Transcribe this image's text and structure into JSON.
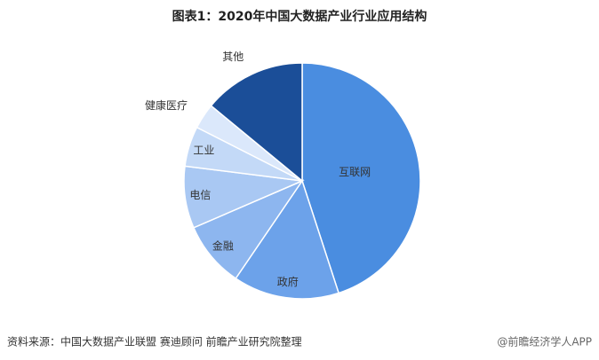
{
  "chart_data": {
    "type": "pie",
    "title": "图表1：2020年中国大数据产业行业应用结构",
    "categories": [
      "互联网",
      "政府",
      "金融",
      "电信",
      "工业",
      "健康医疗",
      "其他"
    ],
    "values": [
      45,
      14.5,
      9,
      8.5,
      5.5,
      3.5,
      14
    ],
    "colors": [
      "#4a8de0",
      "#6ca2ea",
      "#8db6ef",
      "#a9c8f3",
      "#c3d9f7",
      "#dbe8fb",
      "#1b4e98"
    ],
    "source": "资料来源：中国大数据产业联盟 赛迪顾问 前瞻产业研究院整理",
    "watermark": "@前瞻经济学人APP"
  }
}
